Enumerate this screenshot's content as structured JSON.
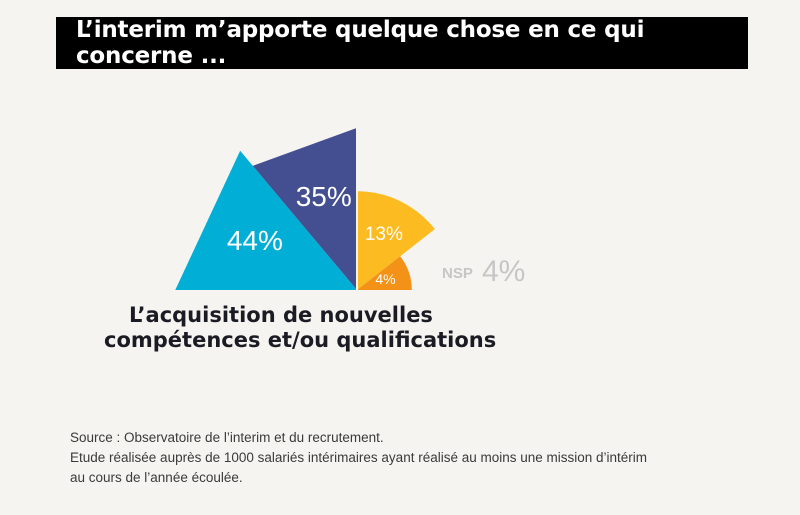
{
  "title": "L’interim m’apporte quelque chose en ce qui concerne ...",
  "chart_data": {
    "type": "pie",
    "caption_lines": [
      "L’acquisition de nouvelles",
      "compétences et/ou qualifications"
    ],
    "slices": [
      {
        "label": "44%",
        "value": 44,
        "color": "#00aed6"
      },
      {
        "label": "35%",
        "value": 35,
        "color": "#434f91"
      },
      {
        "label": "13%",
        "value": 13,
        "color": "#fbbb21"
      },
      {
        "label": "4%",
        "value": 4,
        "color": "#f39217"
      }
    ],
    "nsp": {
      "prefix": "NSP",
      "value_label": "4%",
      "value": 4,
      "color": "#c6c6c6"
    }
  },
  "source_lines": [
    "Source : Observatoire de l’interim et du recrutement.",
    "Etude réalisée auprès de 1000 salariés intérimaires ayant réalisé au moins une mission d’intérim",
    "au cours de l’année écoulée."
  ]
}
